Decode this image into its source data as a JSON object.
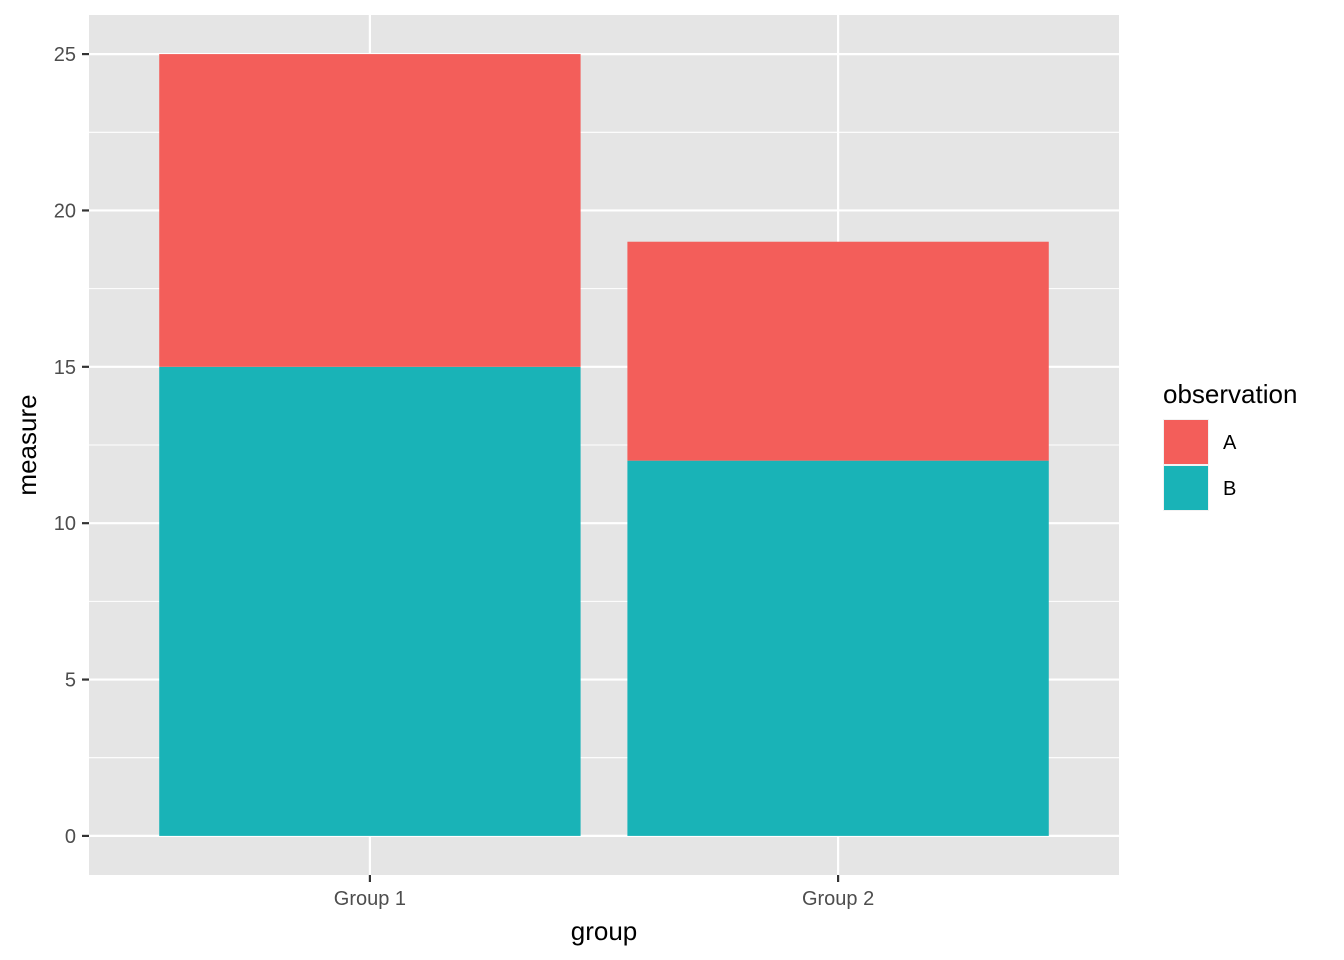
{
  "chart_data": {
    "type": "bar",
    "stacked": true,
    "categories": [
      "Group 1",
      "Group 2"
    ],
    "series": [
      {
        "name": "A",
        "values": [
          10,
          7
        ],
        "color": "#F35E5A"
      },
      {
        "name": "B",
        "values": [
          15,
          12
        ],
        "color": "#19B3B7"
      }
    ],
    "stack_order_bottom_to_top": [
      "B",
      "A"
    ],
    "xlabel": "group",
    "ylabel": "measure",
    "ylim": [
      -1.25,
      26.25
    ],
    "yticks": [
      0,
      5,
      10,
      15,
      20,
      25
    ],
    "ytick_labels": [
      "0",
      "5",
      "10",
      "15",
      "20",
      "25"
    ],
    "grid": true,
    "legend": {
      "title": "observation",
      "position": "right",
      "entries": [
        "A",
        "B"
      ]
    },
    "colors": {
      "panel_background": "#E5E5E5",
      "gridline": "#FFFFFF",
      "tick_mark": "#333333"
    }
  }
}
